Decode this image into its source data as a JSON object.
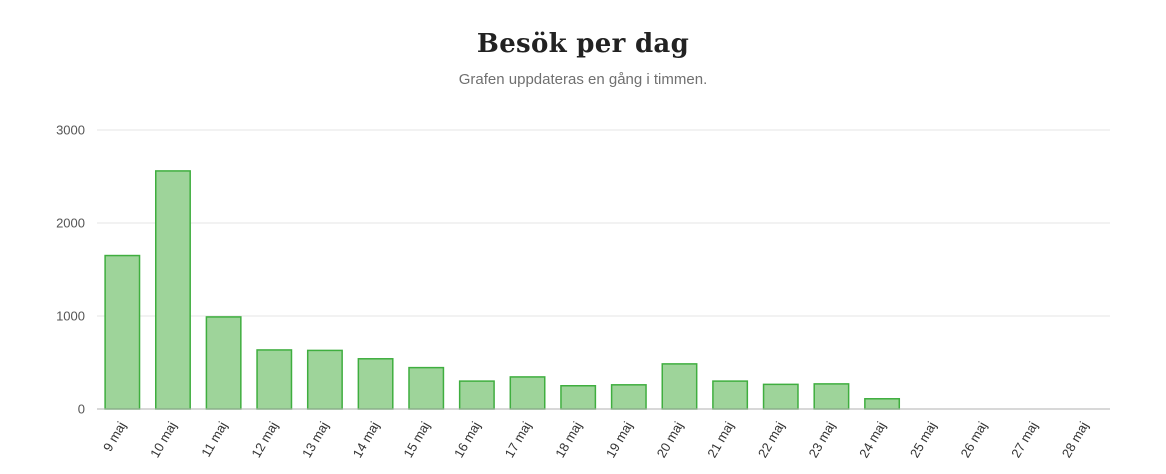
{
  "chart_data": {
    "type": "bar",
    "title": "Besök per dag",
    "subtitle": "Grafen uppdateras en gång i timmen.",
    "xlabel": "",
    "ylabel": "",
    "ylim": [
      0,
      3000
    ],
    "yticks": [
      0,
      1000,
      2000,
      3000
    ],
    "grid": true,
    "legend": "none",
    "categories": [
      "9 maj",
      "10 maj",
      "11 maj",
      "12 maj",
      "13 maj",
      "14 maj",
      "15 maj",
      "16 maj",
      "17 maj",
      "18 maj",
      "19 maj",
      "20 maj",
      "21 maj",
      "22 maj",
      "23 maj",
      "24 maj",
      "25 maj",
      "26 maj",
      "27 maj",
      "28 maj"
    ],
    "values": [
      1650,
      2560,
      990,
      635,
      630,
      540,
      445,
      300,
      345,
      250,
      260,
      485,
      300,
      265,
      270,
      110,
      0,
      0,
      0,
      0
    ],
    "colors": {
      "bar_fill": "#9ed49a",
      "bar_stroke": "#3fae3f"
    }
  }
}
